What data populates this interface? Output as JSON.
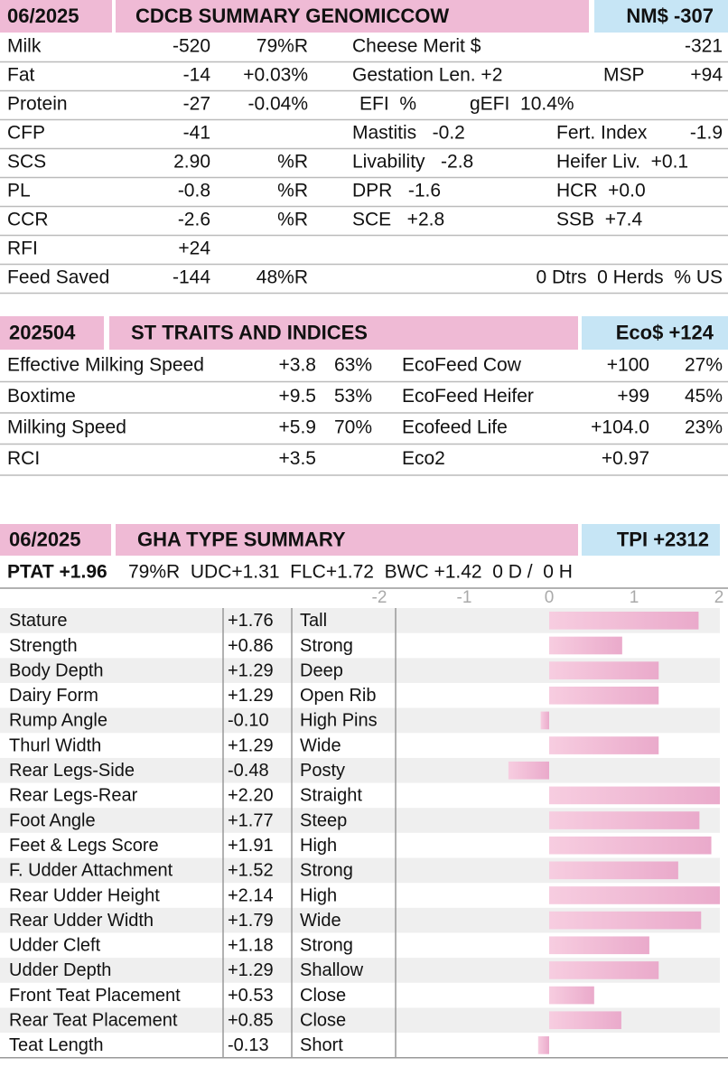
{
  "cdcb": {
    "date": "06/2025",
    "title": "CDCB SUMMARY GENOMICCOW",
    "index": "NM$ -307",
    "rows": [
      {
        "left": [
          "Milk",
          "-520",
          "79%R"
        ],
        "right": [
          "Cheese Merit $",
          "-321"
        ]
      },
      {
        "left": [
          "Fat",
          "-14",
          "+0.03%"
        ],
        "right": [
          "Gestation Len. +2",
          "MSP",
          "+94"
        ]
      },
      {
        "left": [
          "Protein",
          "-27",
          "-0.04%"
        ],
        "right": [
          "EFI  %",
          "gEFI  10.4%"
        ]
      },
      {
        "left": [
          "CFP",
          "-41"
        ],
        "right": [
          "Mastitis   -0.2",
          "Fert. Index",
          "-1.9"
        ]
      },
      {
        "left": [
          "SCS",
          "2.90",
          "%R"
        ],
        "right": [
          "Livability   -2.8",
          "Heifer Liv.  +0.1"
        ]
      },
      {
        "left": [
          "PL",
          "-0.8",
          "%R"
        ],
        "right": [
          "DPR   -1.6",
          "HCR  +0.0"
        ]
      },
      {
        "left": [
          "CCR",
          "-2.6",
          "%R"
        ],
        "right": [
          "SCE   +2.8",
          "SSB  +7.4"
        ]
      },
      {
        "left": [
          "RFI",
          "+24"
        ]
      },
      {
        "left": [
          "Feed Saved",
          "-144",
          "48%R"
        ],
        "right": [
          "0 Dtrs  0 Herds  % US"
        ]
      }
    ]
  },
  "st": {
    "date": "202504",
    "title": "ST TRAITS AND INDICES",
    "index": "Eco$ +124",
    "rows": [
      {
        "left": [
          "Effective Milking Speed",
          "+3.8",
          "63%"
        ],
        "right": [
          "EcoFeed Cow",
          "+100",
          "27%"
        ]
      },
      {
        "left": [
          "Boxtime",
          "+9.5",
          "53%"
        ],
        "right": [
          "EcoFeed Heifer",
          "+99",
          "45%"
        ]
      },
      {
        "left": [
          "Milking Speed",
          "+5.9",
          "70%"
        ],
        "right": [
          "Ecofeed Life",
          "+104.0",
          "23%"
        ]
      },
      {
        "left": [
          "RCI",
          "+3.5"
        ],
        "right": [
          "Eco2",
          "+0.97"
        ]
      }
    ]
  },
  "gha": {
    "date": "06/2025",
    "title": "GHA TYPE SUMMARY",
    "index": "TPI +2312",
    "ptat": "PTAT +1.96",
    "summary": "79%R  UDC+1.31  FLC+1.72  BWC +1.42  0 D /  0 H"
  },
  "chart_data": {
    "type": "bar",
    "orientation": "horizontal",
    "color": "#eeb4cf",
    "categories": [
      "Stature",
      "Strength",
      "Body Depth",
      "Dairy Form",
      "Rump Angle",
      "Thurl Width",
      "Rear Legs-Side",
      "Rear Legs-Rear",
      "Foot Angle",
      "Feet & Legs Score",
      "F. Udder Attachment",
      "Rear Udder Height",
      "Rear Udder Width",
      "Udder Cleft",
      "Udder Depth",
      "Front Teat Placement",
      "Rear Teat Placement",
      "Teat Length"
    ],
    "values": [
      1.76,
      0.86,
      1.29,
      1.29,
      -0.1,
      1.29,
      -0.48,
      2.2,
      1.77,
      1.91,
      1.52,
      2.14,
      1.79,
      1.18,
      1.29,
      0.53,
      0.85,
      -0.13
    ],
    "value_labels": [
      "+1.76",
      "+0.86",
      "+1.29",
      "+1.29",
      "-0.10",
      "+1.29",
      "-0.48",
      "+2.20",
      "+1.77",
      "+1.91",
      "+1.52",
      "+2.14",
      "+1.79",
      "+1.18",
      "+1.29",
      "+0.53",
      "+0.85",
      "-0.13"
    ],
    "descriptions": [
      "Tall",
      "Strong",
      "Deep",
      "Open Rib",
      "High Pins",
      "Wide",
      "Posty",
      "Straight",
      "Steep",
      "High",
      "Strong",
      "High",
      "Wide",
      "Strong",
      "Shallow",
      "Close",
      "Close",
      "Short"
    ],
    "xlim": [
      -2,
      2
    ],
    "xticks": [
      -2,
      -1,
      0,
      1,
      2
    ]
  }
}
